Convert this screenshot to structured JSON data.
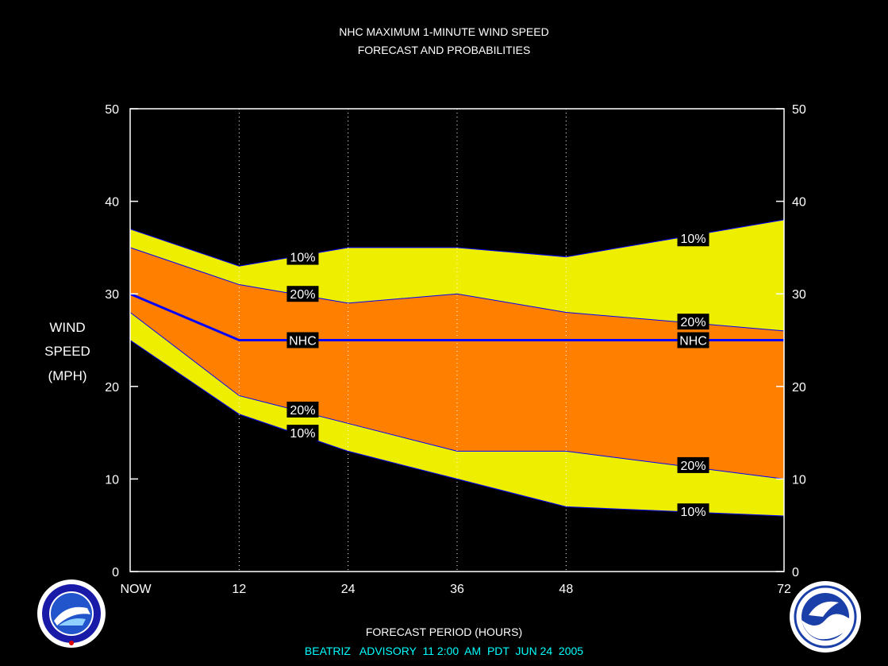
{
  "title": "NHC MAXIMUM 1-MINUTE WIND SPEED",
  "subtitle": "FORECAST AND PROBABILITIES",
  "ylabel_lines": [
    "WIND",
    "SPEED",
    "(MPH)"
  ],
  "xlabel": "FORECAST PERIOD (HOURS)",
  "footer": "BEATRIZ   ADVISORY  11 2:00  AM  PDT  JUN 24  2005",
  "colors": {
    "background": "#000000",
    "outer_band": "#eeee00",
    "inner_band": "#ff8000",
    "nhc_line": "#0000ff",
    "footer_text": "#00ffff",
    "axis": "#ffffff"
  },
  "logos": {
    "left_icon": "noaa-weather-service-seal",
    "right_icon": "noaa-logo"
  },
  "chart_data": {
    "type": "area",
    "x": [
      0,
      12,
      24,
      36,
      48,
      72
    ],
    "x_tick_labels": [
      "NOW",
      "12",
      "24",
      "36",
      "48",
      "72"
    ],
    "xlim": [
      0,
      72
    ],
    "ylim": [
      0,
      50
    ],
    "y_ticks": [
      0,
      10,
      20,
      30,
      40,
      50
    ],
    "grid": "vertical dotted at x ticks",
    "series": [
      {
        "name": "10%",
        "values": [
          37,
          33,
          35,
          35,
          34,
          38
        ]
      },
      {
        "name": "20%",
        "values": [
          35,
          31,
          29,
          30,
          28,
          26
        ]
      },
      {
        "name": "NHC",
        "values": [
          30,
          25,
          25,
          25,
          25,
          25
        ]
      },
      {
        "name": "20%",
        "values": [
          28,
          19,
          16,
          13,
          13,
          10
        ]
      },
      {
        "name": "10%",
        "values": [
          25,
          17,
          13,
          10,
          7,
          6
        ]
      }
    ],
    "labels": [
      {
        "text": "10%",
        "x": 19,
        "y": 34
      },
      {
        "text": "20%",
        "x": 19,
        "y": 30
      },
      {
        "text": "NHC",
        "x": 19,
        "y": 25
      },
      {
        "text": "20%",
        "x": 19,
        "y": 17.5
      },
      {
        "text": "10%",
        "x": 19,
        "y": 15
      },
      {
        "text": "10%",
        "x": 62,
        "y": 36
      },
      {
        "text": "20%",
        "x": 62,
        "y": 27
      },
      {
        "text": "NHC",
        "x": 62,
        "y": 25
      },
      {
        "text": "20%",
        "x": 62,
        "y": 11.5
      },
      {
        "text": "10%",
        "x": 62,
        "y": 6.5
      }
    ]
  }
}
